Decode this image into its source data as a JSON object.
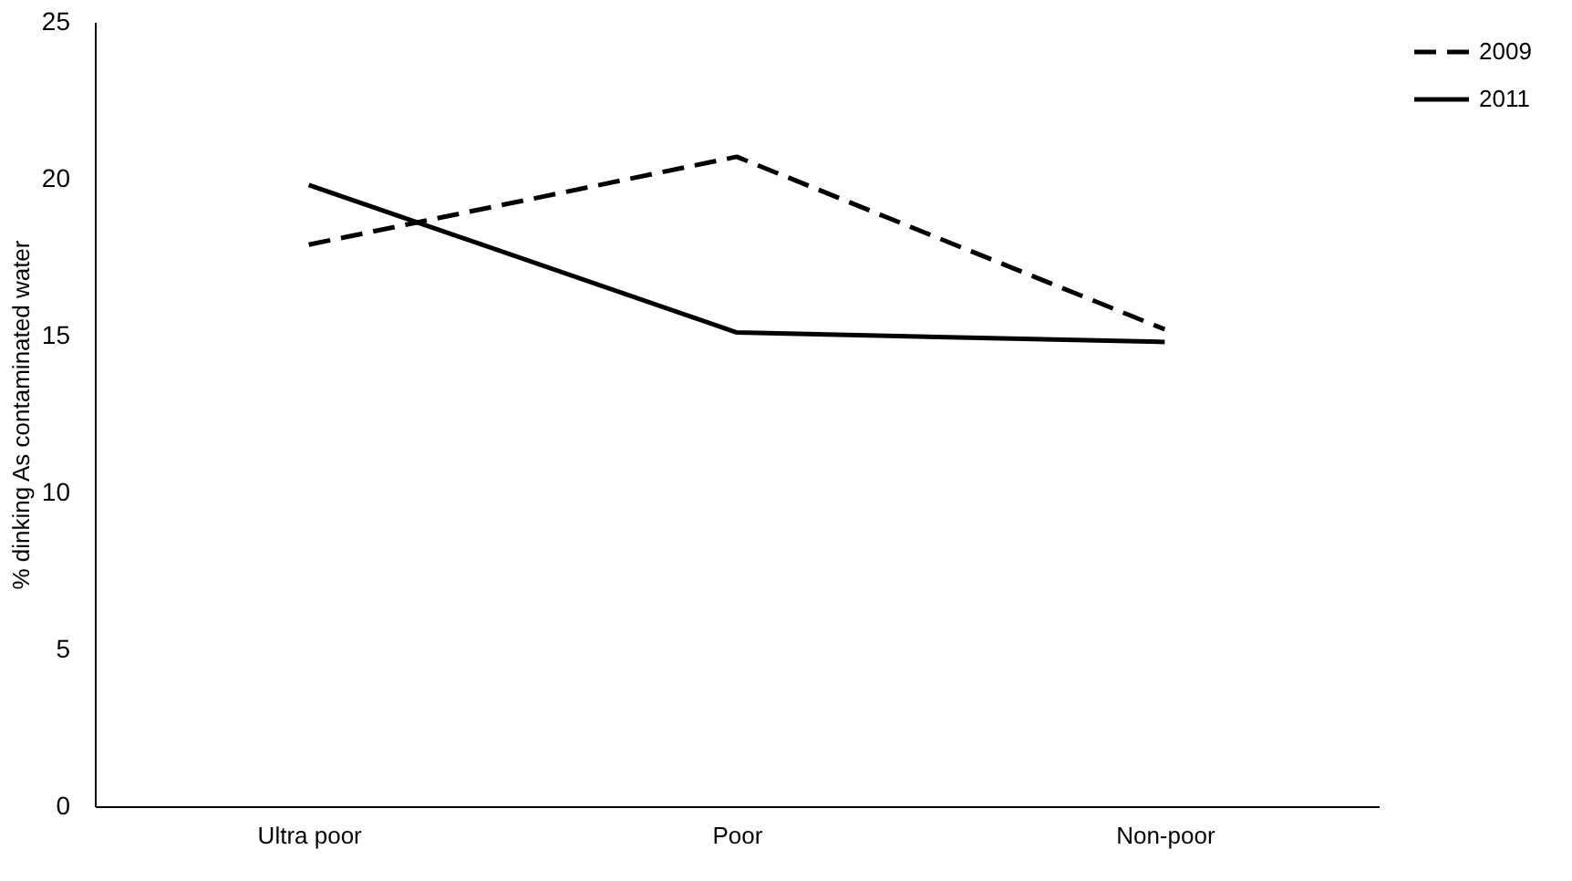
{
  "chart_data": {
    "type": "line",
    "ylabel": "% dinking As contaminated water",
    "categories": [
      "Ultra poor",
      "Poor",
      "Non-poor"
    ],
    "series": [
      {
        "name": "2009",
        "color": "#000000",
        "line_style": "dashed",
        "values": [
          17.9,
          20.7,
          15.2
        ]
      },
      {
        "name": "2011",
        "color": "#000000",
        "line_style": "solid",
        "values": [
          19.8,
          15.1,
          14.8
        ]
      }
    ],
    "ylim": [
      0,
      25
    ],
    "yticks": [
      0,
      5,
      10,
      15,
      20,
      25
    ],
    "grid": false,
    "legend": "right",
    "marker": "none"
  }
}
